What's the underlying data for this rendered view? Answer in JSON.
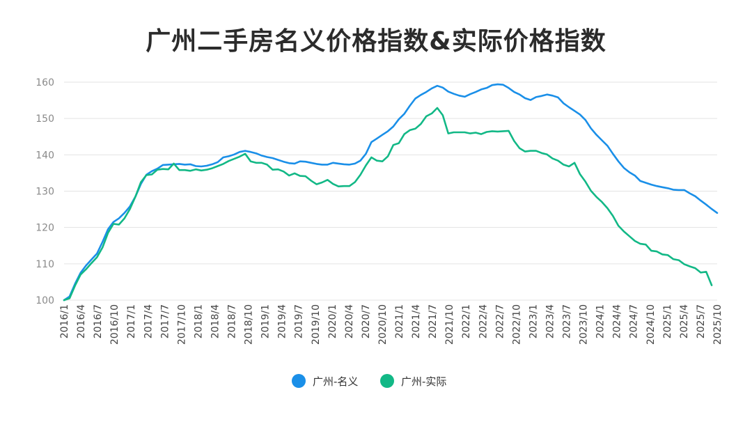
{
  "chart_data": {
    "type": "line",
    "title": "广州二手房名义价格指数&实际价格指数",
    "xlabel": "",
    "ylabel": "",
    "ylim": [
      100,
      160
    ],
    "yticks": [
      100,
      110,
      120,
      130,
      140,
      150,
      160
    ],
    "grid": true,
    "legend_position": "bottom-center",
    "x_tick_labels": [
      "2016/1",
      "2016/4",
      "2016/7",
      "2016/10",
      "2017/1",
      "2017/4",
      "2017/7",
      "2017/10",
      "2018/1",
      "2018/4",
      "2018/7",
      "2018/10",
      "2019/1",
      "2019/4",
      "2019/7",
      "2019/10",
      "2020/1",
      "2020/4",
      "2020/7",
      "2020/10",
      "2021/1",
      "2021/4",
      "2021/7",
      "2021/10",
      "2022/1",
      "2022/4",
      "2022/7",
      "2022/10",
      "2023/1",
      "2023/4",
      "2023/7",
      "2023/10",
      "2024/1",
      "2024/4",
      "2024/7",
      "2024/10",
      "2025/1",
      "2025/4",
      "2025/7",
      "2025/10"
    ],
    "series": [
      {
        "name": "广州-名义",
        "color": "#1a8fe8",
        "values": [
          100,
          101,
          104.5,
          107.5,
          109.5,
          111.2,
          112.8,
          116,
          119.5,
          121.5,
          122.5,
          124,
          125.8,
          128.5,
          132,
          134.5,
          135.5,
          136.2,
          137.2,
          137.3,
          137.4,
          137.5,
          137.3,
          137.4,
          136.9,
          136.8,
          137,
          137.4,
          138,
          139.3,
          139.6,
          140.1,
          140.8,
          141.1,
          140.8,
          140.4,
          139.8,
          139.4,
          139.1,
          138.6,
          138.1,
          137.7,
          137.6,
          138.2,
          138.1,
          137.8,
          137.5,
          137.3,
          137.3,
          137.8,
          137.6,
          137.4,
          137.3,
          137.6,
          138.4,
          140.3,
          143.5,
          144.5,
          145.5,
          146.5,
          147.8,
          149.8,
          151.3,
          153.5,
          155.5,
          156.5,
          157.3,
          158.3,
          159,
          158.5,
          157.4,
          156.8,
          156.3,
          156,
          156.7,
          157.3,
          158,
          158.4,
          159.2,
          159.4,
          159.3,
          158.4,
          157.3,
          156.6,
          155.6,
          155.1,
          155.9,
          156.2,
          156.6,
          156.3,
          155.8,
          154.2,
          153.1,
          152.1,
          151.1,
          149.6,
          147.3,
          145.5,
          144,
          142.5,
          140.3,
          138.2,
          136.4,
          135.2,
          134.3,
          132.8,
          132.3,
          131.8,
          131.4,
          131.1,
          130.8,
          130.4,
          130.3,
          130.3,
          129.4,
          128.6,
          127.4,
          126.3,
          125.1,
          124
        ]
      },
      {
        "name": "广州-实际",
        "color": "#12b886",
        "values": [
          100,
          100.5,
          104,
          107,
          108.5,
          110.2,
          111.8,
          114.5,
          118.5,
          121,
          120.8,
          122.5,
          125.1,
          128.5,
          132.5,
          134.4,
          134.6,
          135.9,
          136.1,
          136,
          137.6,
          135.8,
          135.8,
          135.6,
          136,
          135.7,
          135.9,
          136.3,
          136.9,
          137.5,
          138.3,
          138.9,
          139.5,
          140.3,
          138.2,
          137.8,
          137.8,
          137.3,
          135.9,
          136,
          135.4,
          134.3,
          134.9,
          134.2,
          134.1,
          132.9,
          131.9,
          132.4,
          133.1,
          132,
          131.3,
          131.4,
          131.4,
          132.5,
          134.5,
          137.1,
          139.3,
          138.4,
          138.2,
          139.6,
          142.7,
          143.2,
          145.7,
          146.8,
          147.2,
          148.5,
          150.6,
          151.4,
          152.9,
          150.9,
          145.9,
          146.2,
          146.2,
          146.2,
          145.9,
          146.1,
          145.7,
          146.3,
          146.5,
          146.4,
          146.5,
          146.6,
          143.8,
          141.8,
          140.9,
          141.1,
          141.1,
          140.5,
          140.1,
          139,
          138.4,
          137.3,
          136.8,
          137.8,
          134.7,
          132.6,
          130.1,
          128.4,
          127,
          125.3,
          123.2,
          120.5,
          118.9,
          117.6,
          116.3,
          115.5,
          115.3,
          113.6,
          113.4,
          112.6,
          112.4,
          111.3,
          111,
          109.9,
          109.3,
          108.8,
          107.6,
          107.8,
          104.1
        ]
      }
    ]
  }
}
